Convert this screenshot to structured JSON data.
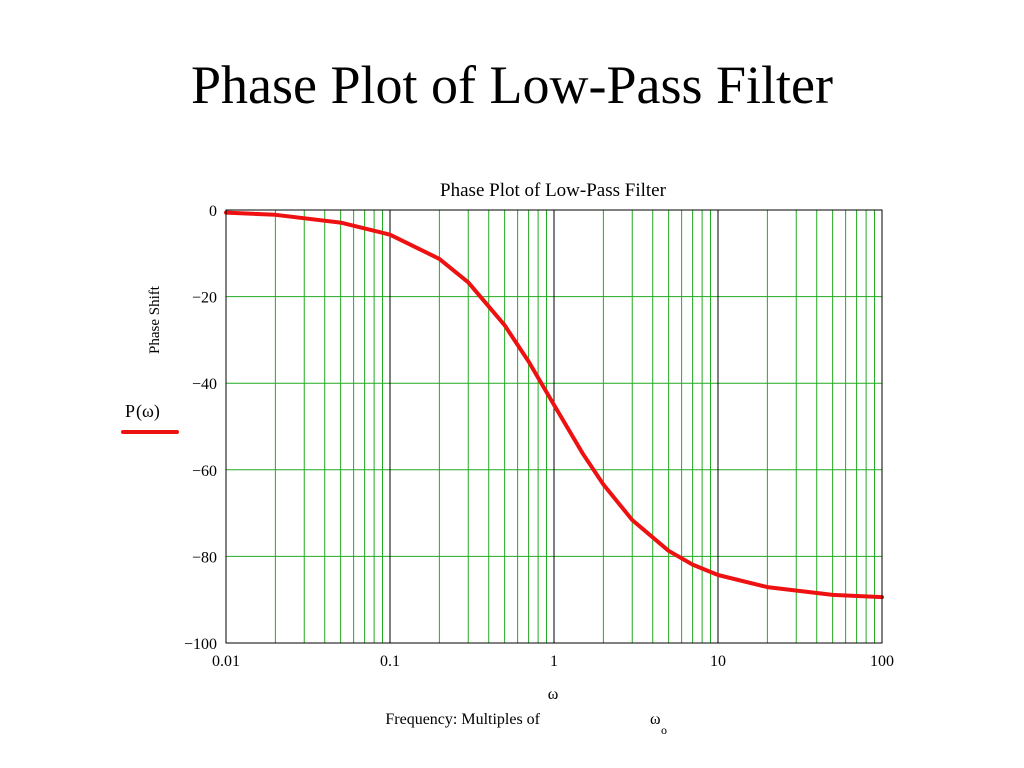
{
  "slide": {
    "title": "Phase Plot of Low-Pass Filter"
  },
  "legend": {
    "label_main": "P",
    "label_arg": "ω",
    "color": "#ee1111"
  },
  "colors": {
    "curve": "#ee1111",
    "major_grid": "#000000",
    "minor_grid": "#22aa22",
    "frame": "#000000"
  },
  "chart_data": {
    "type": "line",
    "title": "Phase Plot of Low-Pass Filter",
    "xscale": "log",
    "xlim": [
      0.01,
      100
    ],
    "ylim": [
      -100,
      0
    ],
    "x_ticks": [
      "0.01",
      "0.1",
      "1",
      "10",
      "100"
    ],
    "y_ticks": [
      "0",
      "−20",
      "−40",
      "−60",
      "−80",
      "−100"
    ],
    "ylabel": "Phase Shift",
    "xlabel_symbol": "ω",
    "xlabel_text": "Frequency: Multiples of",
    "xlabel_var": "ω",
    "xlabel_sub": "o",
    "grid": true,
    "series": [
      {
        "name": "P(ω)",
        "x": [
          0.01,
          0.02,
          0.05,
          0.1,
          0.2,
          0.3,
          0.5,
          0.7,
          1,
          1.5,
          2,
          3,
          5,
          7,
          10,
          20,
          50,
          100
        ],
        "y": [
          -0.6,
          -1.1,
          -2.9,
          -5.7,
          -11.3,
          -16.7,
          -26.6,
          -35.0,
          -45.0,
          -56.3,
          -63.4,
          -71.6,
          -78.7,
          -81.9,
          -84.3,
          -87.1,
          -88.9,
          -89.4
        ]
      }
    ]
  }
}
